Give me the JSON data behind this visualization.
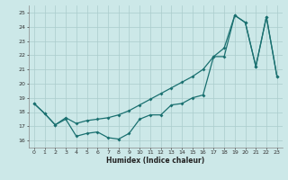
{
  "xlabel": "Humidex (Indice chaleur)",
  "xlim": [
    -0.5,
    23.5
  ],
  "ylim": [
    15.5,
    25.5
  ],
  "xticks": [
    0,
    1,
    2,
    3,
    4,
    5,
    6,
    7,
    8,
    9,
    10,
    11,
    12,
    13,
    14,
    15,
    16,
    17,
    18,
    19,
    20,
    21,
    22,
    23
  ],
  "yticks": [
    16,
    17,
    18,
    19,
    20,
    21,
    22,
    23,
    24,
    25
  ],
  "bg_color": "#cce8e8",
  "grid_color": "#aacccc",
  "line_color": "#1a7070",
  "upper_x": [
    0,
    1,
    2,
    3,
    4,
    5,
    6,
    7,
    8,
    9,
    10,
    11,
    12,
    13,
    14,
    15,
    16,
    17,
    18,
    19,
    20,
    21,
    22,
    23
  ],
  "upper_y": [
    18.6,
    17.9,
    17.1,
    17.6,
    17.2,
    17.4,
    17.5,
    17.6,
    17.8,
    18.1,
    18.5,
    18.9,
    19.3,
    19.7,
    20.1,
    20.5,
    21.0,
    21.9,
    22.5,
    24.8,
    24.3,
    21.2,
    24.7,
    20.5
  ],
  "lower_x": [
    0,
    1,
    2,
    3,
    4,
    5,
    6,
    7,
    8,
    9,
    10,
    11,
    12,
    13,
    14,
    15,
    16,
    17,
    18,
    19,
    20,
    21,
    22,
    23
  ],
  "lower_y": [
    18.6,
    17.9,
    17.1,
    17.5,
    16.3,
    16.5,
    16.6,
    16.2,
    16.1,
    16.5,
    17.5,
    17.8,
    17.8,
    18.5,
    18.6,
    19.0,
    19.2,
    21.9,
    21.9,
    24.8,
    24.3,
    21.2,
    24.7,
    20.5
  ]
}
